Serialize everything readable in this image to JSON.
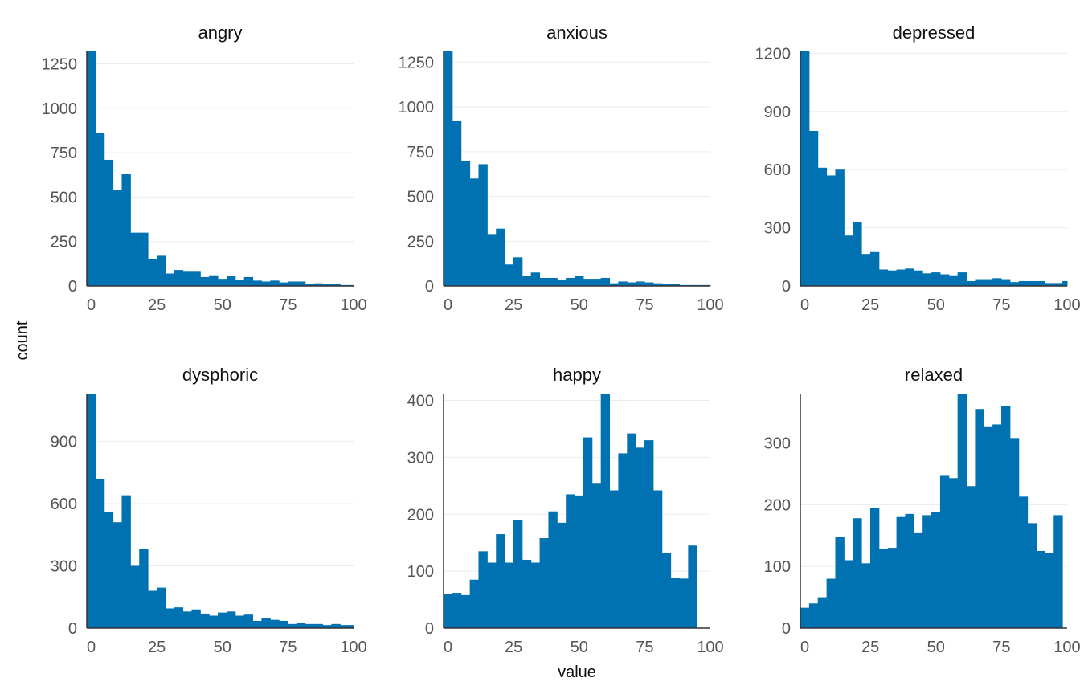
{
  "figure": {
    "xlabel": "value",
    "ylabel": "count",
    "bar_color": "#0072B2"
  },
  "chart_data": [
    {
      "type": "bar",
      "title": "angry",
      "bin_width": 3.33,
      "x_range": [
        -1.7,
        100
      ],
      "xticks": [
        0,
        25,
        50,
        75,
        100
      ],
      "yticks": [
        0,
        250,
        500,
        750,
        1000,
        1250
      ],
      "ylim": [
        0,
        1320
      ],
      "values": [
        1320,
        860,
        710,
        540,
        630,
        300,
        300,
        150,
        170,
        70,
        90,
        80,
        80,
        50,
        60,
        40,
        55,
        35,
        50,
        30,
        25,
        30,
        20,
        25,
        25,
        10,
        15,
        10,
        10,
        5,
        5
      ]
    },
    {
      "type": "bar",
      "title": "anxious",
      "bin_width": 3.33,
      "x_range": [
        -1.7,
        100
      ],
      "xticks": [
        0,
        25,
        50,
        75,
        100
      ],
      "yticks": [
        0,
        250,
        500,
        750,
        1000,
        1250
      ],
      "ylim": [
        0,
        1310
      ],
      "values": [
        1310,
        920,
        700,
        600,
        680,
        290,
        320,
        120,
        160,
        55,
        75,
        45,
        45,
        35,
        45,
        55,
        40,
        40,
        45,
        15,
        25,
        20,
        25,
        20,
        15,
        10,
        10,
        5,
        5,
        5,
        5
      ]
    },
    {
      "type": "bar",
      "title": "depressed",
      "bin_width": 3.33,
      "x_range": [
        -1.7,
        100
      ],
      "xticks": [
        0,
        25,
        50,
        75,
        100
      ],
      "yticks": [
        0,
        300,
        600,
        900,
        1200
      ],
      "ylim": [
        0,
        1210
      ],
      "values": [
        1210,
        800,
        610,
        570,
        600,
        260,
        330,
        165,
        175,
        85,
        80,
        85,
        90,
        80,
        65,
        70,
        60,
        55,
        70,
        25,
        35,
        35,
        40,
        35,
        20,
        25,
        25,
        25,
        15,
        15,
        25
      ]
    },
    {
      "type": "bar",
      "title": "dysphoric",
      "bin_width": 3.33,
      "x_range": [
        -1.7,
        100
      ],
      "xticks": [
        0,
        25,
        50,
        75,
        100
      ],
      "yticks": [
        0,
        300,
        600,
        900
      ],
      "ylim": [
        0,
        1130
      ],
      "values": [
        1130,
        720,
        560,
        510,
        640,
        300,
        380,
        180,
        195,
        95,
        100,
        80,
        90,
        70,
        60,
        75,
        80,
        60,
        65,
        35,
        50,
        40,
        35,
        20,
        25,
        20,
        20,
        15,
        20,
        15,
        15
      ]
    },
    {
      "type": "bar",
      "title": "happy",
      "bin_width": 3.33,
      "x_range": [
        -1.7,
        100
      ],
      "xticks": [
        0,
        25,
        50,
        75,
        100
      ],
      "yticks": [
        0,
        100,
        200,
        300,
        400
      ],
      "ylim": [
        0,
        412
      ],
      "values": [
        60,
        62,
        58,
        85,
        135,
        115,
        165,
        115,
        190,
        120,
        115,
        158,
        205,
        185,
        235,
        233,
        335,
        255,
        412,
        242,
        307,
        342,
        317,
        330,
        242,
        132,
        88,
        87,
        145
      ]
    },
    {
      "type": "bar",
      "title": "relaxed",
      "bin_width": 3.33,
      "x_range": [
        -1.7,
        100
      ],
      "xticks": [
        0,
        25,
        50,
        75,
        100
      ],
      "yticks": [
        0,
        100,
        200,
        300
      ],
      "ylim": [
        0,
        380
      ],
      "values": [
        33,
        40,
        50,
        80,
        148,
        110,
        178,
        105,
        195,
        128,
        130,
        180,
        185,
        155,
        183,
        188,
        248,
        243,
        380,
        230,
        355,
        327,
        330,
        360,
        308,
        213,
        170,
        125,
        122,
        183
      ]
    }
  ]
}
